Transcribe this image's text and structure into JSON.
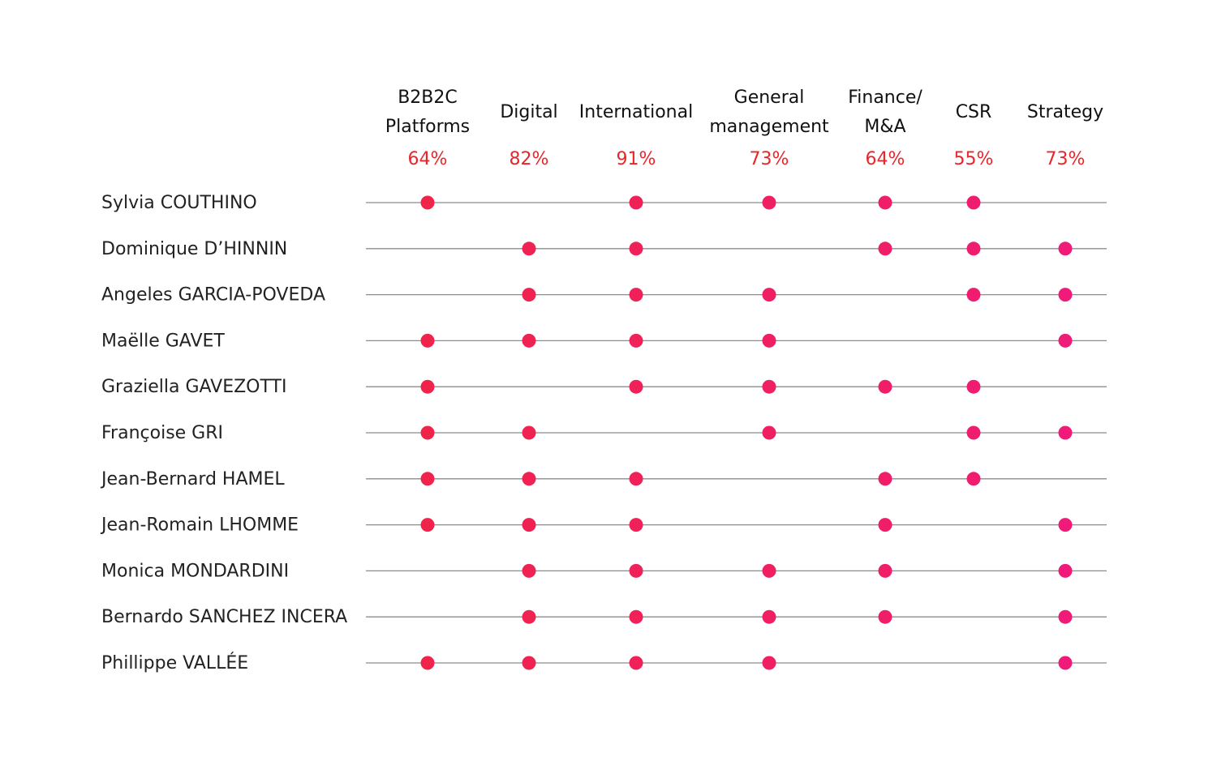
{
  "chart_data": {
    "type": "table",
    "columns": [
      {
        "lines": [
          "B2B2C",
          "Platforms"
        ],
        "percent": "64%"
      },
      {
        "lines": [
          "Digital"
        ],
        "percent": "82%"
      },
      {
        "lines": [
          "International"
        ],
        "percent": "91%"
      },
      {
        "lines": [
          "General",
          "management"
        ],
        "percent": "73%"
      },
      {
        "lines": [
          "Finance/",
          "M&A"
        ],
        "percent": "64%"
      },
      {
        "lines": [
          "CSR"
        ],
        "percent": "55%"
      },
      {
        "lines": [
          "Strategy"
        ],
        "percent": "73%"
      }
    ],
    "rows": [
      {
        "name": "Sylvia COUTHINO",
        "marks": [
          1,
          0,
          1,
          1,
          1,
          1,
          0
        ]
      },
      {
        "name": "Dominique D’HINNIN",
        "marks": [
          0,
          1,
          1,
          0,
          1,
          1,
          1
        ]
      },
      {
        "name": "Angeles GARCIA-POVEDA",
        "marks": [
          0,
          1,
          1,
          1,
          0,
          1,
          1
        ]
      },
      {
        "name": "Maëlle GAVET",
        "marks": [
          1,
          1,
          1,
          1,
          0,
          0,
          1
        ]
      },
      {
        "name": "Graziella GAVEZOTTI",
        "marks": [
          1,
          0,
          1,
          1,
          1,
          1,
          0
        ]
      },
      {
        "name": "Françoise GRI",
        "marks": [
          1,
          1,
          0,
          1,
          0,
          1,
          1
        ]
      },
      {
        "name": "Jean-Bernard HAMEL",
        "marks": [
          1,
          1,
          1,
          0,
          1,
          1,
          0
        ]
      },
      {
        "name": "Jean-Romain LHOMME",
        "marks": [
          1,
          1,
          1,
          0,
          1,
          0,
          1
        ]
      },
      {
        "name": "Monica MONDARDINI",
        "marks": [
          0,
          1,
          1,
          1,
          1,
          0,
          1
        ]
      },
      {
        "name": "Bernardo SANCHEZ INCERA",
        "marks": [
          0,
          1,
          1,
          1,
          1,
          0,
          1
        ]
      },
      {
        "name": "Phillippe VALLÉE",
        "marks": [
          1,
          1,
          1,
          1,
          0,
          0,
          1
        ]
      }
    ],
    "colors": {
      "header_text": "#111111",
      "percent_text": "#e8262a",
      "row_label_text": "#222222",
      "line": "#8c8c8c",
      "dot_left": "#f0244a",
      "dot_right": "#f01a78"
    }
  }
}
